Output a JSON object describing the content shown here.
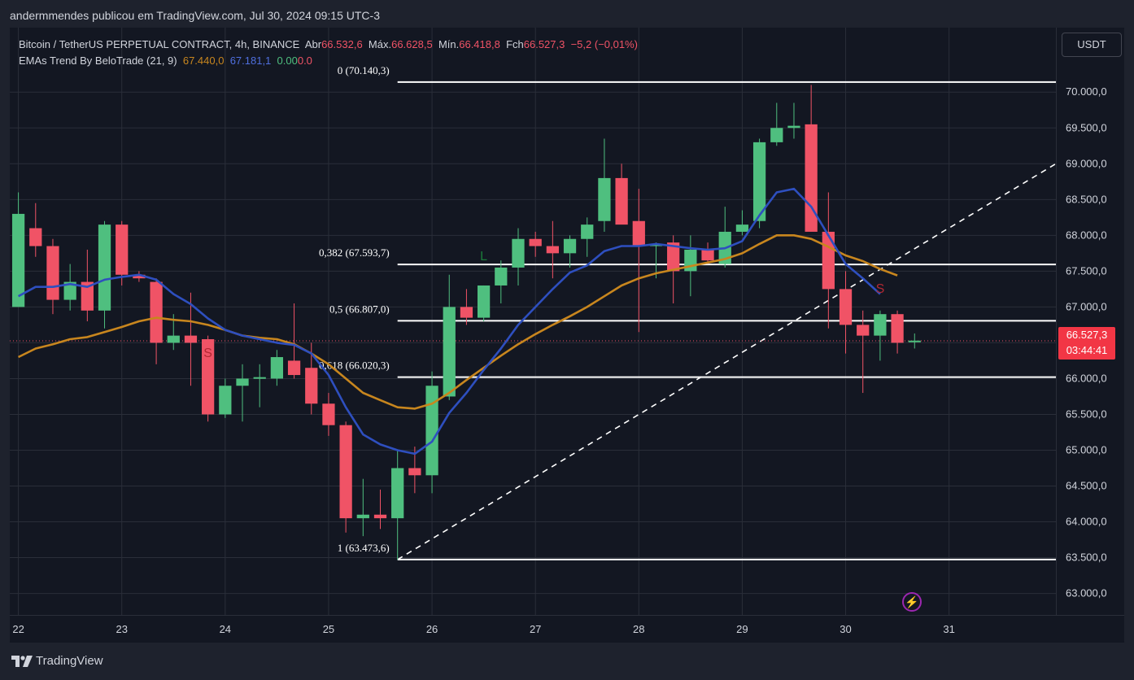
{
  "publisher": "andermmendes publicou em TradingView.com, Jul 30, 2024 09:15 UTC-3",
  "symbol": {
    "name": "Bitcoin / TetherUS PERPETUAL CONTRACT, 4h, BINANCE",
    "open_label": "Abr",
    "open": "66.532,6",
    "high_label": "Máx.",
    "high": "66.628,5",
    "low_label": "Mín.",
    "low": "66.418,8",
    "close_label": "Fch",
    "close": "66.527,3",
    "change": "−5,2 (−0,01%)"
  },
  "indicator": {
    "name": "EMAs Trend By BeloTrade (21, 9)",
    "ema21_value": "67.440,0",
    "ema9_value": "67.181,1",
    "extra_value": "0.00",
    "extra_value2": "0.0"
  },
  "currency_button": "USDT",
  "last_price": {
    "price": "66.527,3",
    "countdown": "03:44:41"
  },
  "footer": {
    "brand": "TradingView",
    "logo_icon": "tradingview-logo-icon"
  },
  "colors": {
    "background": "#131722",
    "bull": "#4fbf7f",
    "bear": "#f05366",
    "ema21": "#c8861e",
    "ema9": "#2e4fbf",
    "level_line": "#ffffff",
    "grid": "#2a2e39",
    "text": "#d1d4dc"
  },
  "chart_data": {
    "type": "candlestick",
    "timeframe": "4h",
    "y_ticks": [
      "63.000,0",
      "63.500,0",
      "64.000,0",
      "64.500,0",
      "65.000,0",
      "65.500,0",
      "66.000,0",
      "66.500,0",
      "67.000,0",
      "67.500,0",
      "68.000,0",
      "68.500,0",
      "69.000,0",
      "69.500,0",
      "70.000,0"
    ],
    "y_tick_values": [
      63000,
      63500,
      64000,
      64500,
      65000,
      65500,
      66000,
      66500,
      67000,
      67500,
      68000,
      68500,
      69000,
      69500,
      70000
    ],
    "ylim": [
      62700,
      70900
    ],
    "x_labels": [
      "22",
      "23",
      "24",
      "25",
      "26",
      "27",
      "28",
      "29",
      "30",
      "31"
    ],
    "x_label_positions": [
      0.5,
      6.5,
      12.5,
      18.5,
      24.5,
      30.5,
      36.5,
      42.5,
      48.5,
      54.5
    ],
    "xlim": [
      0,
      60.7
    ],
    "candles": [
      {
        "o": 67.0,
        "h": 68.6,
        "l": 67.0,
        "c": 68.3
      },
      {
        "o": 68.1,
        "h": 68.45,
        "l": 67.7,
        "c": 67.85
      },
      {
        "o": 67.85,
        "h": 67.95,
        "l": 66.9,
        "c": 67.1
      },
      {
        "o": 67.1,
        "h": 67.6,
        "l": 66.95,
        "c": 67.35
      },
      {
        "o": 67.35,
        "h": 67.8,
        "l": 66.8,
        "c": 66.95
      },
      {
        "o": 66.95,
        "h": 68.2,
        "l": 66.7,
        "c": 68.15
      },
      {
        "o": 68.15,
        "h": 68.2,
        "l": 67.3,
        "c": 67.45
      },
      {
        "o": 67.45,
        "h": 67.5,
        "l": 67.35,
        "c": 67.4
      },
      {
        "o": 67.35,
        "h": 67.4,
        "l": 66.2,
        "c": 66.5
      },
      {
        "o": 66.5,
        "h": 66.9,
        "l": 66.4,
        "c": 66.6
      },
      {
        "o": 66.6,
        "h": 67.2,
        "l": 65.9,
        "c": 66.5
      },
      {
        "o": 66.55,
        "h": 66.6,
        "l": 65.4,
        "c": 65.5
      },
      {
        "o": 65.5,
        "h": 66.0,
        "l": 65.45,
        "c": 65.9
      },
      {
        "o": 65.9,
        "h": 66.2,
        "l": 65.4,
        "c": 66.0
      },
      {
        "o": 66.0,
        "h": 66.2,
        "l": 65.6,
        "c": 66.02
      },
      {
        "o": 66.0,
        "h": 66.4,
        "l": 65.9,
        "c": 66.3
      },
      {
        "o": 66.25,
        "h": 67.05,
        "l": 66.0,
        "c": 66.05
      },
      {
        "o": 66.15,
        "h": 66.5,
        "l": 65.5,
        "c": 65.65
      },
      {
        "o": 65.65,
        "h": 65.8,
        "l": 65.2,
        "c": 65.35
      },
      {
        "o": 65.35,
        "h": 65.4,
        "l": 63.85,
        "c": 64.05
      },
      {
        "o": 64.05,
        "h": 64.6,
        "l": 63.8,
        "c": 64.1
      },
      {
        "o": 64.1,
        "h": 64.45,
        "l": 63.9,
        "c": 64.05
      },
      {
        "o": 64.05,
        "h": 65.0,
        "l": 63.47,
        "c": 64.75
      },
      {
        "o": 64.75,
        "h": 65.05,
        "l": 64.4,
        "c": 64.65
      },
      {
        "o": 64.65,
        "h": 66.1,
        "l": 64.4,
        "c": 65.9
      },
      {
        "o": 65.75,
        "h": 67.45,
        "l": 65.7,
        "c": 67.0
      },
      {
        "o": 67.0,
        "h": 67.25,
        "l": 66.75,
        "c": 66.85
      },
      {
        "o": 66.85,
        "h": 67.3,
        "l": 66.8,
        "c": 67.3
      },
      {
        "o": 67.3,
        "h": 67.65,
        "l": 67.05,
        "c": 67.55
      },
      {
        "o": 67.55,
        "h": 68.1,
        "l": 67.3,
        "c": 67.95
      },
      {
        "o": 67.95,
        "h": 68.05,
        "l": 67.7,
        "c": 67.85
      },
      {
        "o": 67.85,
        "h": 68.2,
        "l": 67.4,
        "c": 67.75
      },
      {
        "o": 67.75,
        "h": 68.0,
        "l": 67.55,
        "c": 67.95
      },
      {
        "o": 67.95,
        "h": 68.25,
        "l": 67.7,
        "c": 68.15
      },
      {
        "o": 68.2,
        "h": 69.35,
        "l": 68.05,
        "c": 68.8
      },
      {
        "o": 68.8,
        "h": 69.0,
        "l": 68.2,
        "c": 68.15
      },
      {
        "o": 68.2,
        "h": 68.65,
        "l": 66.65,
        "c": 67.85
      },
      {
        "o": 67.85,
        "h": 67.9,
        "l": 67.4,
        "c": 67.88
      },
      {
        "o": 67.9,
        "h": 68.0,
        "l": 67.05,
        "c": 67.5
      },
      {
        "o": 67.5,
        "h": 68.0,
        "l": 67.15,
        "c": 67.8
      },
      {
        "o": 67.8,
        "h": 67.9,
        "l": 67.6,
        "c": 67.65
      },
      {
        "o": 67.6,
        "h": 68.4,
        "l": 67.55,
        "c": 68.05
      },
      {
        "o": 68.05,
        "h": 68.35,
        "l": 68.0,
        "c": 68.15
      },
      {
        "o": 68.2,
        "h": 69.35,
        "l": 68.1,
        "c": 69.3
      },
      {
        "o": 69.3,
        "h": 69.85,
        "l": 69.25,
        "c": 69.5
      },
      {
        "o": 69.5,
        "h": 69.85,
        "l": 69.35,
        "c": 69.53
      },
      {
        "o": 69.55,
        "h": 70.1,
        "l": 68.9,
        "c": 68.05
      },
      {
        "o": 68.05,
        "h": 68.6,
        "l": 66.7,
        "c": 67.25
      },
      {
        "o": 67.25,
        "h": 67.5,
        "l": 66.35,
        "c": 66.75
      },
      {
        "o": 66.75,
        "h": 66.95,
        "l": 65.8,
        "c": 66.6
      },
      {
        "o": 66.6,
        "h": 66.95,
        "l": 66.25,
        "c": 66.9
      },
      {
        "o": 66.9,
        "h": 66.95,
        "l": 66.35,
        "c": 66.5
      },
      {
        "o": 66.53,
        "h": 66.63,
        "l": 66.42,
        "c": 66.53
      }
    ],
    "ema_slow": {
      "name": "EMA 21",
      "values": [
        66.3,
        66.42,
        66.48,
        66.55,
        66.58,
        66.65,
        66.72,
        66.8,
        66.85,
        66.82,
        66.8,
        66.75,
        66.68,
        66.6,
        66.57,
        66.55,
        66.48,
        66.35,
        66.2,
        66.0,
        65.8,
        65.7,
        65.6,
        65.58,
        65.65,
        65.8,
        65.98,
        66.15,
        66.32,
        66.48,
        66.62,
        66.75,
        66.87,
        67.0,
        67.15,
        67.3,
        67.4,
        67.47,
        67.52,
        67.57,
        67.62,
        67.67,
        67.75,
        67.88,
        68.0,
        68.0,
        67.95,
        67.84,
        67.72,
        67.64,
        67.53,
        67.44
      ]
    },
    "ema_fast": {
      "name": "EMA 9",
      "values": [
        67.15,
        67.28,
        67.28,
        67.32,
        67.28,
        67.38,
        67.42,
        67.45,
        67.38,
        67.18,
        67.04,
        66.84,
        66.68,
        66.6,
        66.55,
        66.5,
        66.47,
        66.35,
        66.05,
        65.6,
        65.22,
        65.08,
        65.0,
        64.95,
        65.12,
        65.52,
        65.8,
        66.12,
        66.42,
        66.75,
        67.0,
        67.25,
        67.48,
        67.58,
        67.78,
        67.85,
        67.85,
        67.88,
        67.85,
        67.82,
        67.8,
        67.82,
        67.92,
        68.28,
        68.6,
        68.65,
        68.4,
        68.0,
        67.6,
        67.4,
        67.18
      ]
    },
    "fib_levels": [
      {
        "label": "0 (70.140,3)",
        "value": 70140.3
      },
      {
        "label": "0,382 (67.593,7)",
        "value": 67593.7
      },
      {
        "label": "0,5 (66.807,0)",
        "value": 66807.0
      },
      {
        "label": "0,618 (66.020,3)",
        "value": 66020.3
      },
      {
        "label": "1 (63.473,6)",
        "value": 63473.6
      }
    ],
    "fib_start_index": 22.5,
    "trendline": {
      "from": {
        "index": 22.5,
        "value": 63473.6
      },
      "to": {
        "index": 60.7,
        "value": 69000
      }
    },
    "signals": [
      {
        "label": "S",
        "index": 11,
        "value": 66300,
        "color": "#b22833"
      },
      {
        "label": "L",
        "index": 27,
        "value": 67650,
        "color": "#1b7a3a"
      },
      {
        "label": "S",
        "index": 50,
        "value": 67200,
        "color": "#b22833"
      }
    ],
    "last_price_line": 66527.3
  }
}
